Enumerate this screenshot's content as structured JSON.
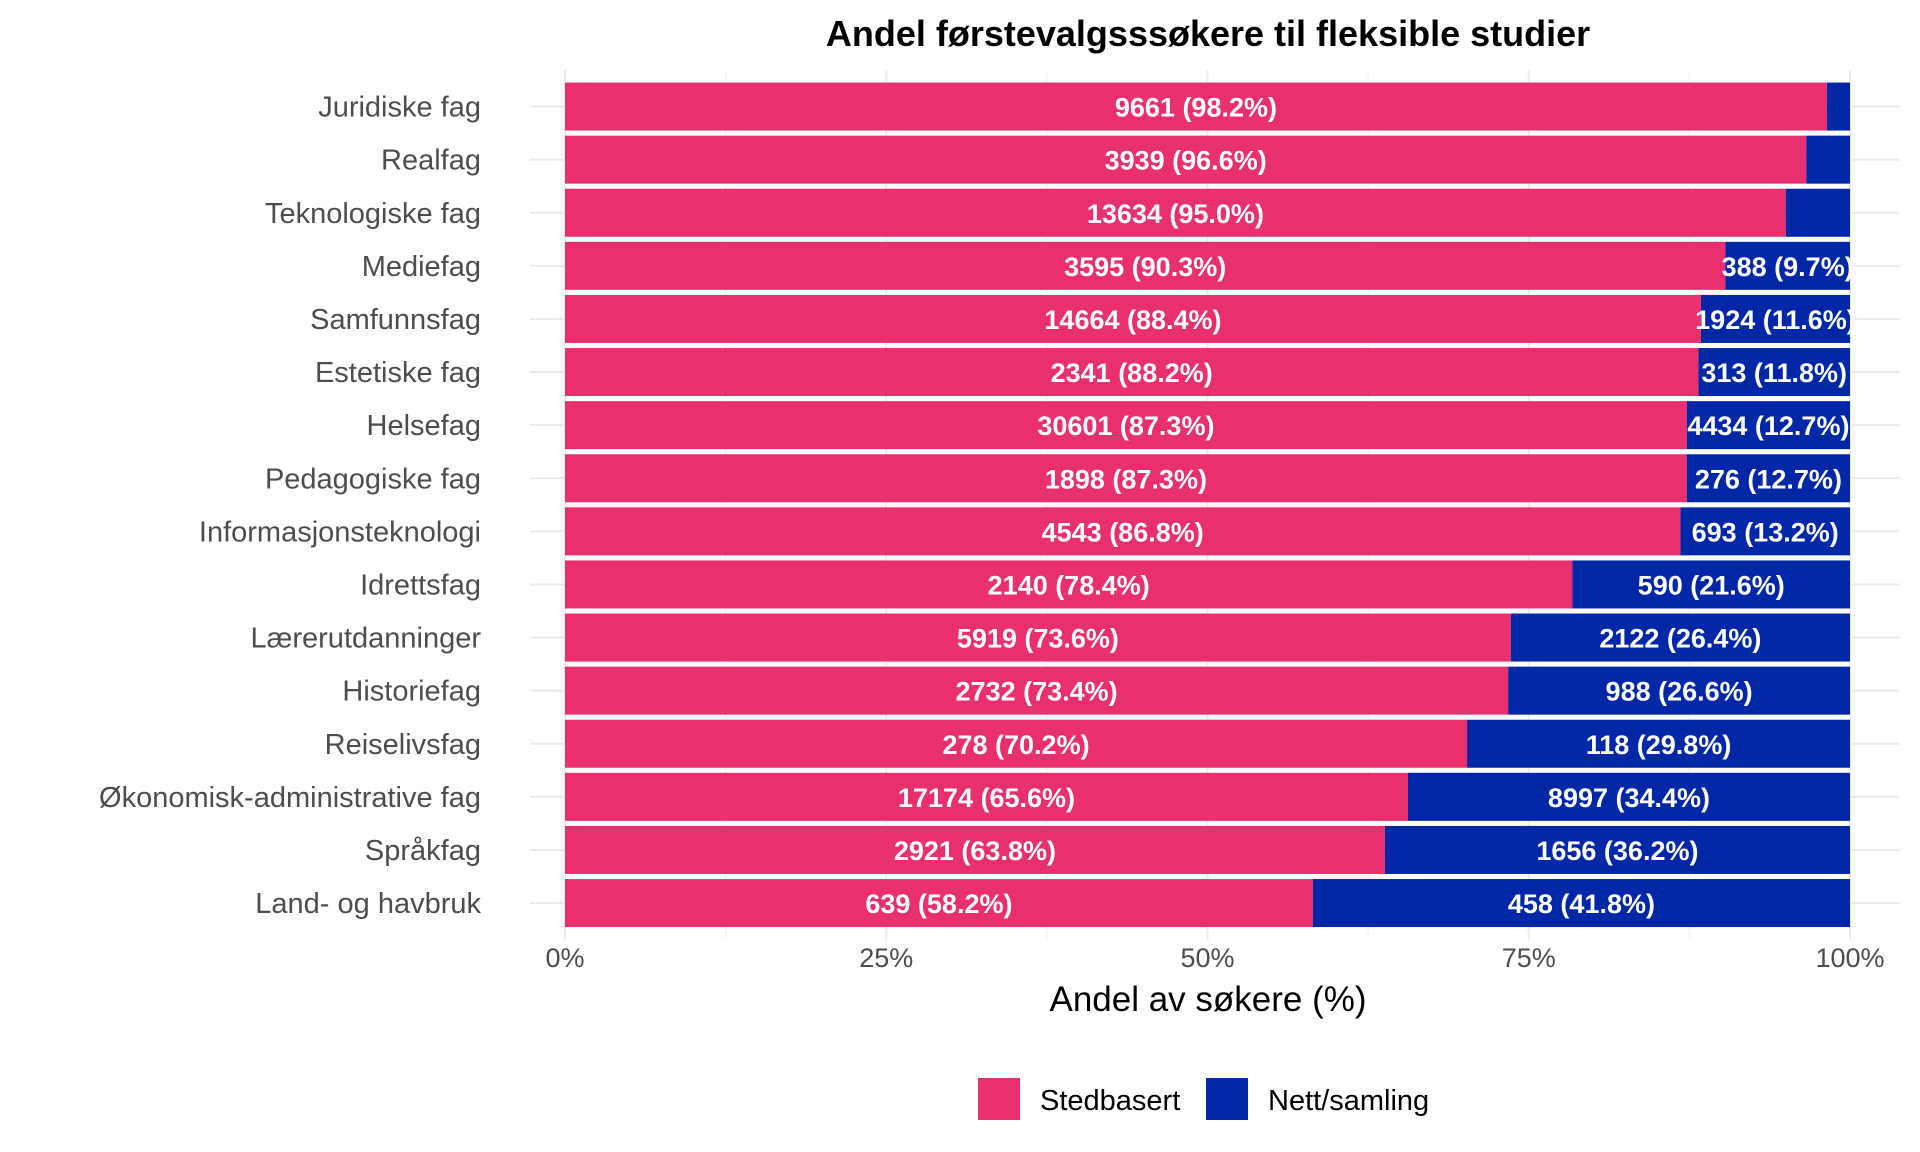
{
  "chart_data": {
    "type": "bar",
    "orientation": "horizontal",
    "stacked": true,
    "title": "Andel førstevalgsssøkere til fleksible studier",
    "xlabel": "Andel av søkere (%)",
    "ylabel": "",
    "xlim": [
      0,
      100
    ],
    "xticks": [
      "0%",
      "25%",
      "50%",
      "75%",
      "100%"
    ],
    "xtick_values": [
      0,
      25,
      50,
      75,
      100
    ],
    "grid": true,
    "legend_position": "bottom",
    "categories": [
      "Juridiske fag",
      "Realfag",
      "Teknologiske fag",
      "Mediefag",
      "Samfunnsfag",
      "Estetiske fag",
      "Helsefag",
      "Pedagogiske fag",
      "Informasjonsteknologi",
      "Idrettsfag",
      "Lærerutdanninger",
      "Historiefag",
      "Reiselivsfag",
      "Økonomisk-administrative fag",
      "Språkfag",
      "Land- og havbruk"
    ],
    "series": [
      {
        "name": "Stedbasert",
        "color": "#e8306e",
        "values": [
          98.2,
          96.6,
          95.0,
          90.3,
          88.4,
          88.2,
          87.3,
          87.3,
          86.8,
          78.4,
          73.6,
          73.4,
          70.2,
          65.6,
          63.8,
          58.2
        ],
        "labels": [
          "9661 (98.2%)",
          "3939 (96.6%)",
          "13634 (95.0%)",
          "3595 (90.3%)",
          "14664 (88.4%)",
          "2341 (88.2%)",
          "30601 (87.3%)",
          "1898 (87.3%)",
          "4543 (86.8%)",
          "2140 (78.4%)",
          "5919 (73.6%)",
          "2732 (73.4%)",
          "278 (70.2%)",
          "17174 (65.6%)",
          "2921 (63.8%)",
          "639 (58.2%)"
        ]
      },
      {
        "name": "Nett/samling",
        "color": "#0027a5",
        "values": [
          1.8,
          3.4,
          5.0,
          9.7,
          11.6,
          11.8,
          12.7,
          12.7,
          13.2,
          21.6,
          26.4,
          26.6,
          29.8,
          34.4,
          36.2,
          41.8
        ],
        "labels": [
          "",
          "",
          "",
          "388 (9.7%)",
          "1924 (11.6%)",
          "313 (11.8%)",
          "4434 (12.7%)",
          "276 (12.7%)",
          "693 (13.2%)",
          "590 (21.6%)",
          "2122 (26.4%)",
          "988 (26.6%)",
          "118 (29.8%)",
          "8997 (34.4%)",
          "1656 (36.2%)",
          "458 (41.8%)"
        ]
      }
    ]
  }
}
